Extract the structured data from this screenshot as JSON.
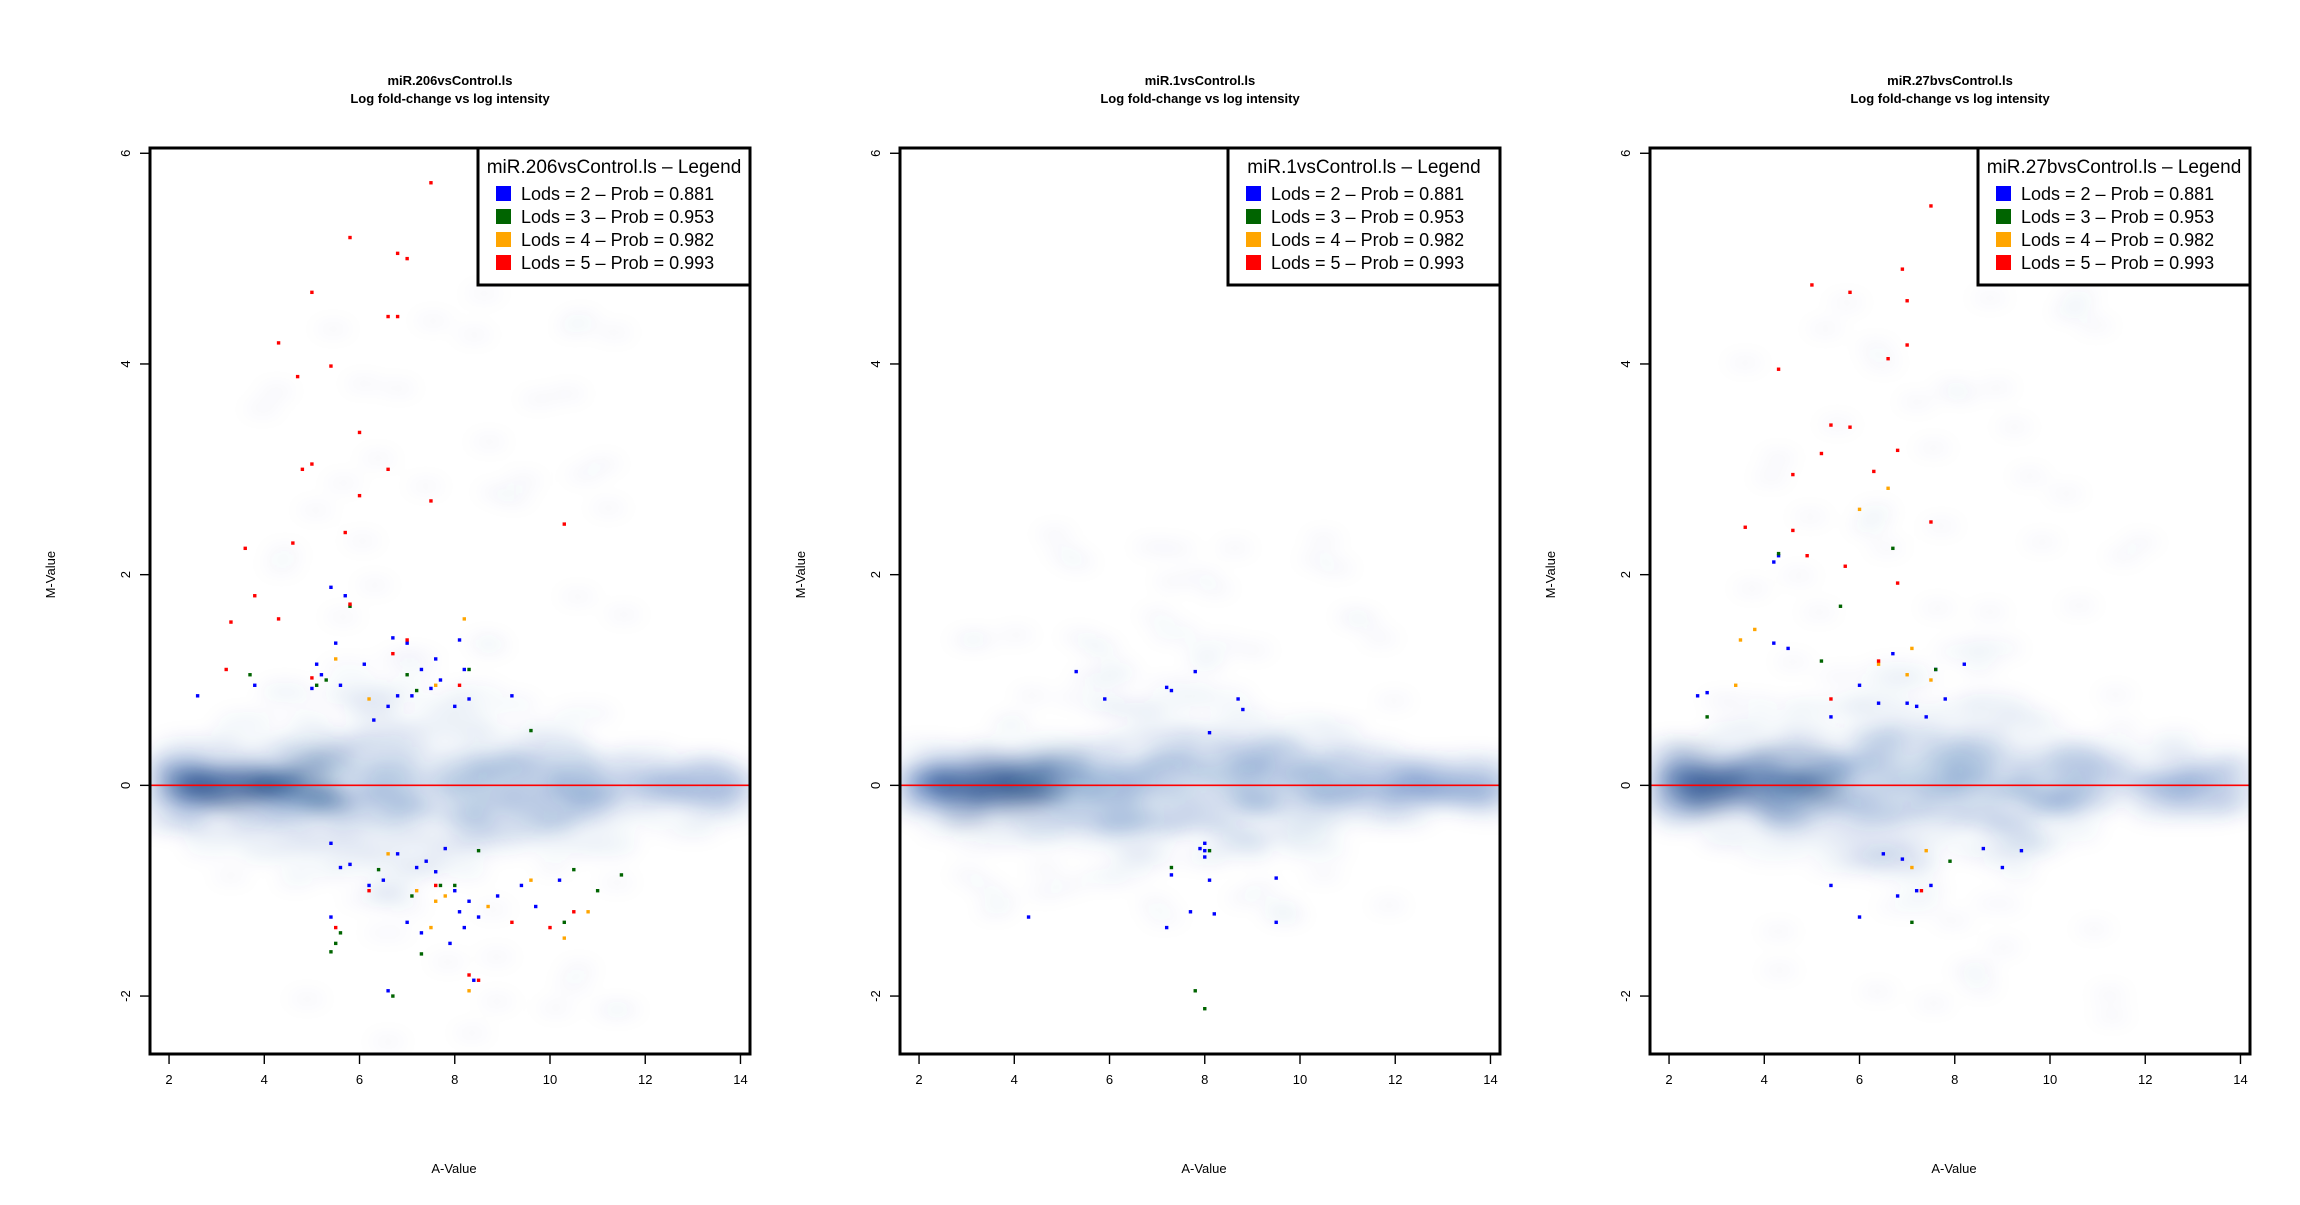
{
  "chart_data": [
    {
      "type": "scatter",
      "title": "miR.206vsControl.ls",
      "subtitle": "Log fold-change vs log intensity",
      "xlabel": "A-Value",
      "ylabel": "M-Value",
      "xlim": [
        1.6,
        14.2
      ],
      "ylim": [
        -2.55,
        6.05
      ],
      "xticks": [
        "2",
        "4",
        "6",
        "8",
        "10",
        "12",
        "14"
      ],
      "yticks": [
        "-2",
        "0",
        "2",
        "4",
        "6"
      ],
      "legend": {
        "title": "miR.206vsControl.ls – Legend",
        "placement": "top-right",
        "entries": [
          "Lods = 2 – Prob = 0.881",
          "Lods = 3 – Prob = 0.953",
          "Lods = 4 – Prob = 0.982",
          "Lods = 5 – Prob = 0.993"
        ]
      },
      "reference_line_y": 0,
      "series": [
        {
          "group": 0,
          "x": [
            2.6,
            3.8,
            5.0,
            5.1,
            5.2,
            5.4,
            5.5,
            5.6,
            5.7,
            6.1,
            6.3,
            6.6,
            6.7,
            6.8,
            7.0,
            7.1,
            7.3,
            7.5,
            7.6,
            7.7,
            8.0,
            8.1,
            8.2,
            8.3,
            9.2,
            5.4,
            5.6,
            5.8,
            6.2,
            6.5,
            6.8,
            7.2,
            7.4,
            7.6,
            7.8,
            8.0,
            8.1,
            8.2,
            8.3,
            8.5,
            8.9,
            9.4,
            9.7,
            10.2,
            7.0,
            7.3,
            7.9,
            5.4,
            6.6,
            8.4
          ],
          "y": [
            0.85,
            0.95,
            0.92,
            1.15,
            1.05,
            1.88,
            1.35,
            0.95,
            1.8,
            1.15,
            0.62,
            0.75,
            1.4,
            0.85,
            1.35,
            0.85,
            1.1,
            0.92,
            1.2,
            1.0,
            0.75,
            1.38,
            1.1,
            0.82,
            0.85,
            -0.55,
            -0.78,
            -0.75,
            -0.95,
            -0.9,
            -0.65,
            -0.78,
            -0.72,
            -0.82,
            -0.6,
            -1.0,
            -1.2,
            -1.35,
            -1.1,
            -1.25,
            -1.05,
            -0.95,
            -1.15,
            -0.9,
            -1.3,
            -1.4,
            -1.5,
            -1.25,
            -1.95,
            -1.85
          ]
        },
        {
          "group": 1,
          "x": [
            3.7,
            5.1,
            5.3,
            5.8,
            7.0,
            7.2,
            8.3,
            9.6,
            5.5,
            6.4,
            7.1,
            7.7,
            8.5,
            10.5,
            11.0,
            11.5,
            5.4,
            5.6,
            7.3,
            6.7,
            10.3,
            8.0
          ],
          "y": [
            1.05,
            0.95,
            1.0,
            1.7,
            1.05,
            0.9,
            1.1,
            0.52,
            -1.5,
            -0.8,
            -1.05,
            -0.95,
            -0.62,
            -0.8,
            -1.0,
            -0.85,
            -1.58,
            -1.4,
            -1.6,
            -2.0,
            -1.3,
            -0.95
          ]
        },
        {
          "group": 2,
          "x": [
            5.5,
            6.2,
            7.6,
            8.2,
            6.6,
            7.2,
            7.6,
            7.8,
            8.7,
            9.6,
            10.8,
            10.3,
            7.5,
            8.3
          ],
          "y": [
            1.2,
            0.82,
            0.95,
            1.58,
            -0.65,
            -1.0,
            -1.1,
            -1.05,
            -1.15,
            -0.9,
            -1.2,
            -1.45,
            -1.35,
            -1.95
          ]
        },
        {
          "group": 3,
          "x": [
            7.5,
            5.8,
            6.8,
            7.0,
            5.0,
            4.3,
            5.4,
            4.7,
            6.6,
            6.8,
            6.0,
            5.0,
            4.8,
            6.6,
            6.0,
            7.5,
            10.3,
            5.7,
            3.6,
            4.6,
            3.8,
            3.3,
            4.3,
            3.2,
            5.8,
            6.7,
            7.0,
            5.0,
            8.1,
            7.6,
            6.2,
            5.5,
            9.2,
            10.0,
            10.5,
            8.3,
            8.5
          ],
          "y": [
            5.72,
            5.2,
            5.05,
            5.0,
            4.68,
            4.2,
            3.98,
            3.88,
            4.45,
            4.45,
            3.35,
            3.05,
            3.0,
            3.0,
            2.75,
            2.7,
            2.48,
            2.4,
            2.25,
            2.3,
            1.8,
            1.55,
            1.58,
            1.1,
            1.72,
            1.25,
            1.38,
            1.02,
            0.95,
            -0.95,
            -1.0,
            -1.35,
            -1.3,
            -1.35,
            -1.2,
            -1.8,
            -1.85
          ]
        }
      ]
    },
    {
      "type": "scatter",
      "title": "miR.1vsControl.ls",
      "subtitle": "Log fold-change vs log intensity",
      "xlabel": "A-Value",
      "ylabel": "M-Value",
      "xlim": [
        1.6,
        14.2
      ],
      "ylim": [
        -2.55,
        6.05
      ],
      "xticks": [
        "2",
        "4",
        "6",
        "8",
        "10",
        "12",
        "14"
      ],
      "yticks": [
        "-2",
        "0",
        "2",
        "4",
        "6"
      ],
      "legend": {
        "title": "miR.1vsControl.ls – Legend",
        "placement": "top-right",
        "entries": [
          "Lods = 2 – Prob = 0.881",
          "Lods = 3 – Prob = 0.953",
          "Lods = 4 – Prob = 0.982",
          "Lods = 5 – Prob = 0.993"
        ]
      },
      "reference_line_y": 0,
      "series": [
        {
          "group": 0,
          "x": [
            5.3,
            5.9,
            7.2,
            7.3,
            7.8,
            8.1,
            8.7,
            8.8,
            4.3,
            7.2,
            7.9,
            8.0,
            8.1,
            8.0,
            8.2,
            9.5,
            9.5,
            7.3,
            8.0,
            7.7
          ],
          "y": [
            1.08,
            0.82,
            0.93,
            0.9,
            1.08,
            0.5,
            0.82,
            0.72,
            -1.25,
            -1.35,
            -0.6,
            -0.55,
            -0.9,
            -0.62,
            -1.22,
            -0.88,
            -1.3,
            -0.85,
            -0.68,
            -1.2
          ]
        },
        {
          "group": 1,
          "x": [
            7.8,
            8.0,
            7.3,
            8.1
          ],
          "y": [
            -1.95,
            -2.12,
            -0.78,
            -0.62
          ]
        },
        {
          "group": 2,
          "x": [],
          "y": []
        },
        {
          "group": 3,
          "x": [],
          "y": []
        }
      ]
    },
    {
      "type": "scatter",
      "title": "miR.27bvsControl.ls",
      "subtitle": "Log fold-change vs log intensity",
      "xlabel": "A-Value",
      "ylabel": "M-Value",
      "xlim": [
        1.6,
        14.2
      ],
      "ylim": [
        -2.55,
        6.05
      ],
      "xticks": [
        "2",
        "4",
        "6",
        "8",
        "10",
        "12",
        "14"
      ],
      "yticks": [
        "-2",
        "0",
        "2",
        "4",
        "6"
      ],
      "legend": {
        "title": "miR.27bvsControl.ls – Legend",
        "placement": "top-right",
        "entries": [
          "Lods = 2 – Prob = 0.881",
          "Lods = 3 – Prob = 0.953",
          "Lods = 4 – Prob = 0.982",
          "Lods = 5 – Prob = 0.993"
        ]
      },
      "reference_line_y": 0,
      "series": [
        {
          "group": 0,
          "x": [
            2.6,
            2.8,
            4.2,
            4.2,
            4.3,
            4.5,
            5.4,
            6.0,
            6.4,
            6.7,
            7.0,
            7.2,
            7.4,
            7.6,
            7.8,
            8.2,
            6.5,
            6.9,
            7.5,
            8.6,
            9.0,
            9.4,
            5.4,
            6.0,
            7.2,
            6.8
          ],
          "y": [
            0.85,
            0.88,
            1.35,
            2.12,
            2.18,
            1.3,
            0.65,
            0.95,
            0.78,
            1.25,
            0.78,
            0.75,
            0.65,
            1.1,
            0.82,
            1.15,
            -0.65,
            -0.7,
            -0.95,
            -0.6,
            -0.78,
            -0.62,
            -0.95,
            -1.25,
            -1.0,
            -1.05
          ]
        },
        {
          "group": 1,
          "x": [
            2.8,
            4.3,
            5.2,
            5.6,
            6.7,
            7.1,
            7.6,
            7.9
          ],
          "y": [
            0.65,
            2.2,
            1.18,
            1.7,
            2.25,
            -1.3,
            1.1,
            -0.72
          ]
        },
        {
          "group": 2,
          "x": [
            3.5,
            3.8,
            3.4,
            6.0,
            6.6,
            7.0,
            7.1,
            7.5,
            6.4,
            7.1,
            7.4
          ],
          "y": [
            1.38,
            1.48,
            0.95,
            2.62,
            2.82,
            1.05,
            1.3,
            1.0,
            1.15,
            -0.78,
            -0.62
          ]
        },
        {
          "group": 3,
          "x": [
            7.5,
            5.0,
            5.8,
            6.9,
            7.0,
            6.6,
            7.0,
            4.3,
            5.4,
            5.8,
            6.3,
            6.8,
            4.6,
            5.2,
            3.6,
            4.6,
            4.9,
            5.7,
            7.5,
            6.8,
            6.4,
            5.4,
            7.3
          ],
          "y": [
            5.5,
            4.75,
            4.68,
            4.9,
            4.6,
            4.05,
            4.18,
            3.95,
            3.42,
            3.4,
            2.98,
            3.18,
            2.95,
            3.15,
            2.45,
            2.42,
            2.18,
            2.08,
            2.5,
            1.92,
            1.18,
            0.82,
            -1.0
          ]
        }
      ]
    }
  ],
  "colors": {
    "lods2": "#0000ff",
    "lods3": "#006400",
    "lods4": "#ffa500",
    "lods5": "#ff0000",
    "density": "#08519c",
    "reference_line": "#ff0000",
    "frame": "#000000"
  }
}
